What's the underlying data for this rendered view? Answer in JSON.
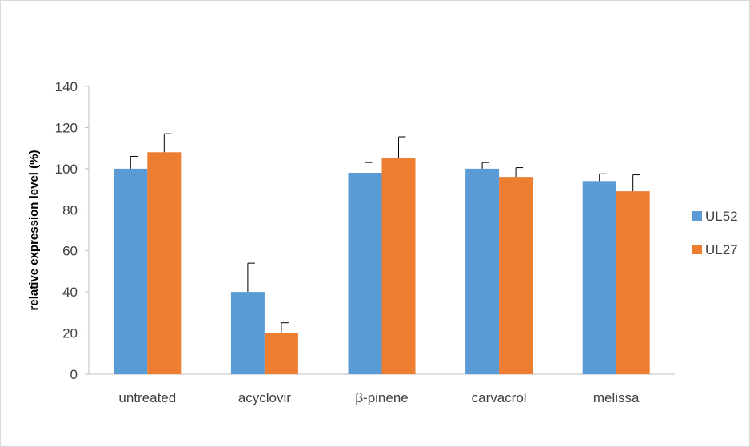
{
  "chart_data": {
    "type": "bar",
    "title": "",
    "xlabel": "",
    "ylabel": "relative expression level (%)",
    "ylim": [
      0,
      140
    ],
    "yticks": [
      0,
      20,
      40,
      60,
      80,
      100,
      120,
      140
    ],
    "grid": false,
    "legend_position": "right",
    "categories": [
      "untreated",
      "acyclovir",
      "β-pinene",
      "carvacrol",
      "melissa"
    ],
    "series": [
      {
        "name": "UL52",
        "color": "#5b9bd5",
        "values": [
          100,
          40,
          98,
          100,
          94
        ],
        "errors": [
          6,
          14,
          5,
          3,
          3.5
        ]
      },
      {
        "name": "UL27",
        "color": "#ed7d31",
        "values": [
          108,
          20,
          105,
          96,
          89
        ],
        "errors": [
          9,
          5,
          10.5,
          4.5,
          8
        ]
      }
    ]
  }
}
